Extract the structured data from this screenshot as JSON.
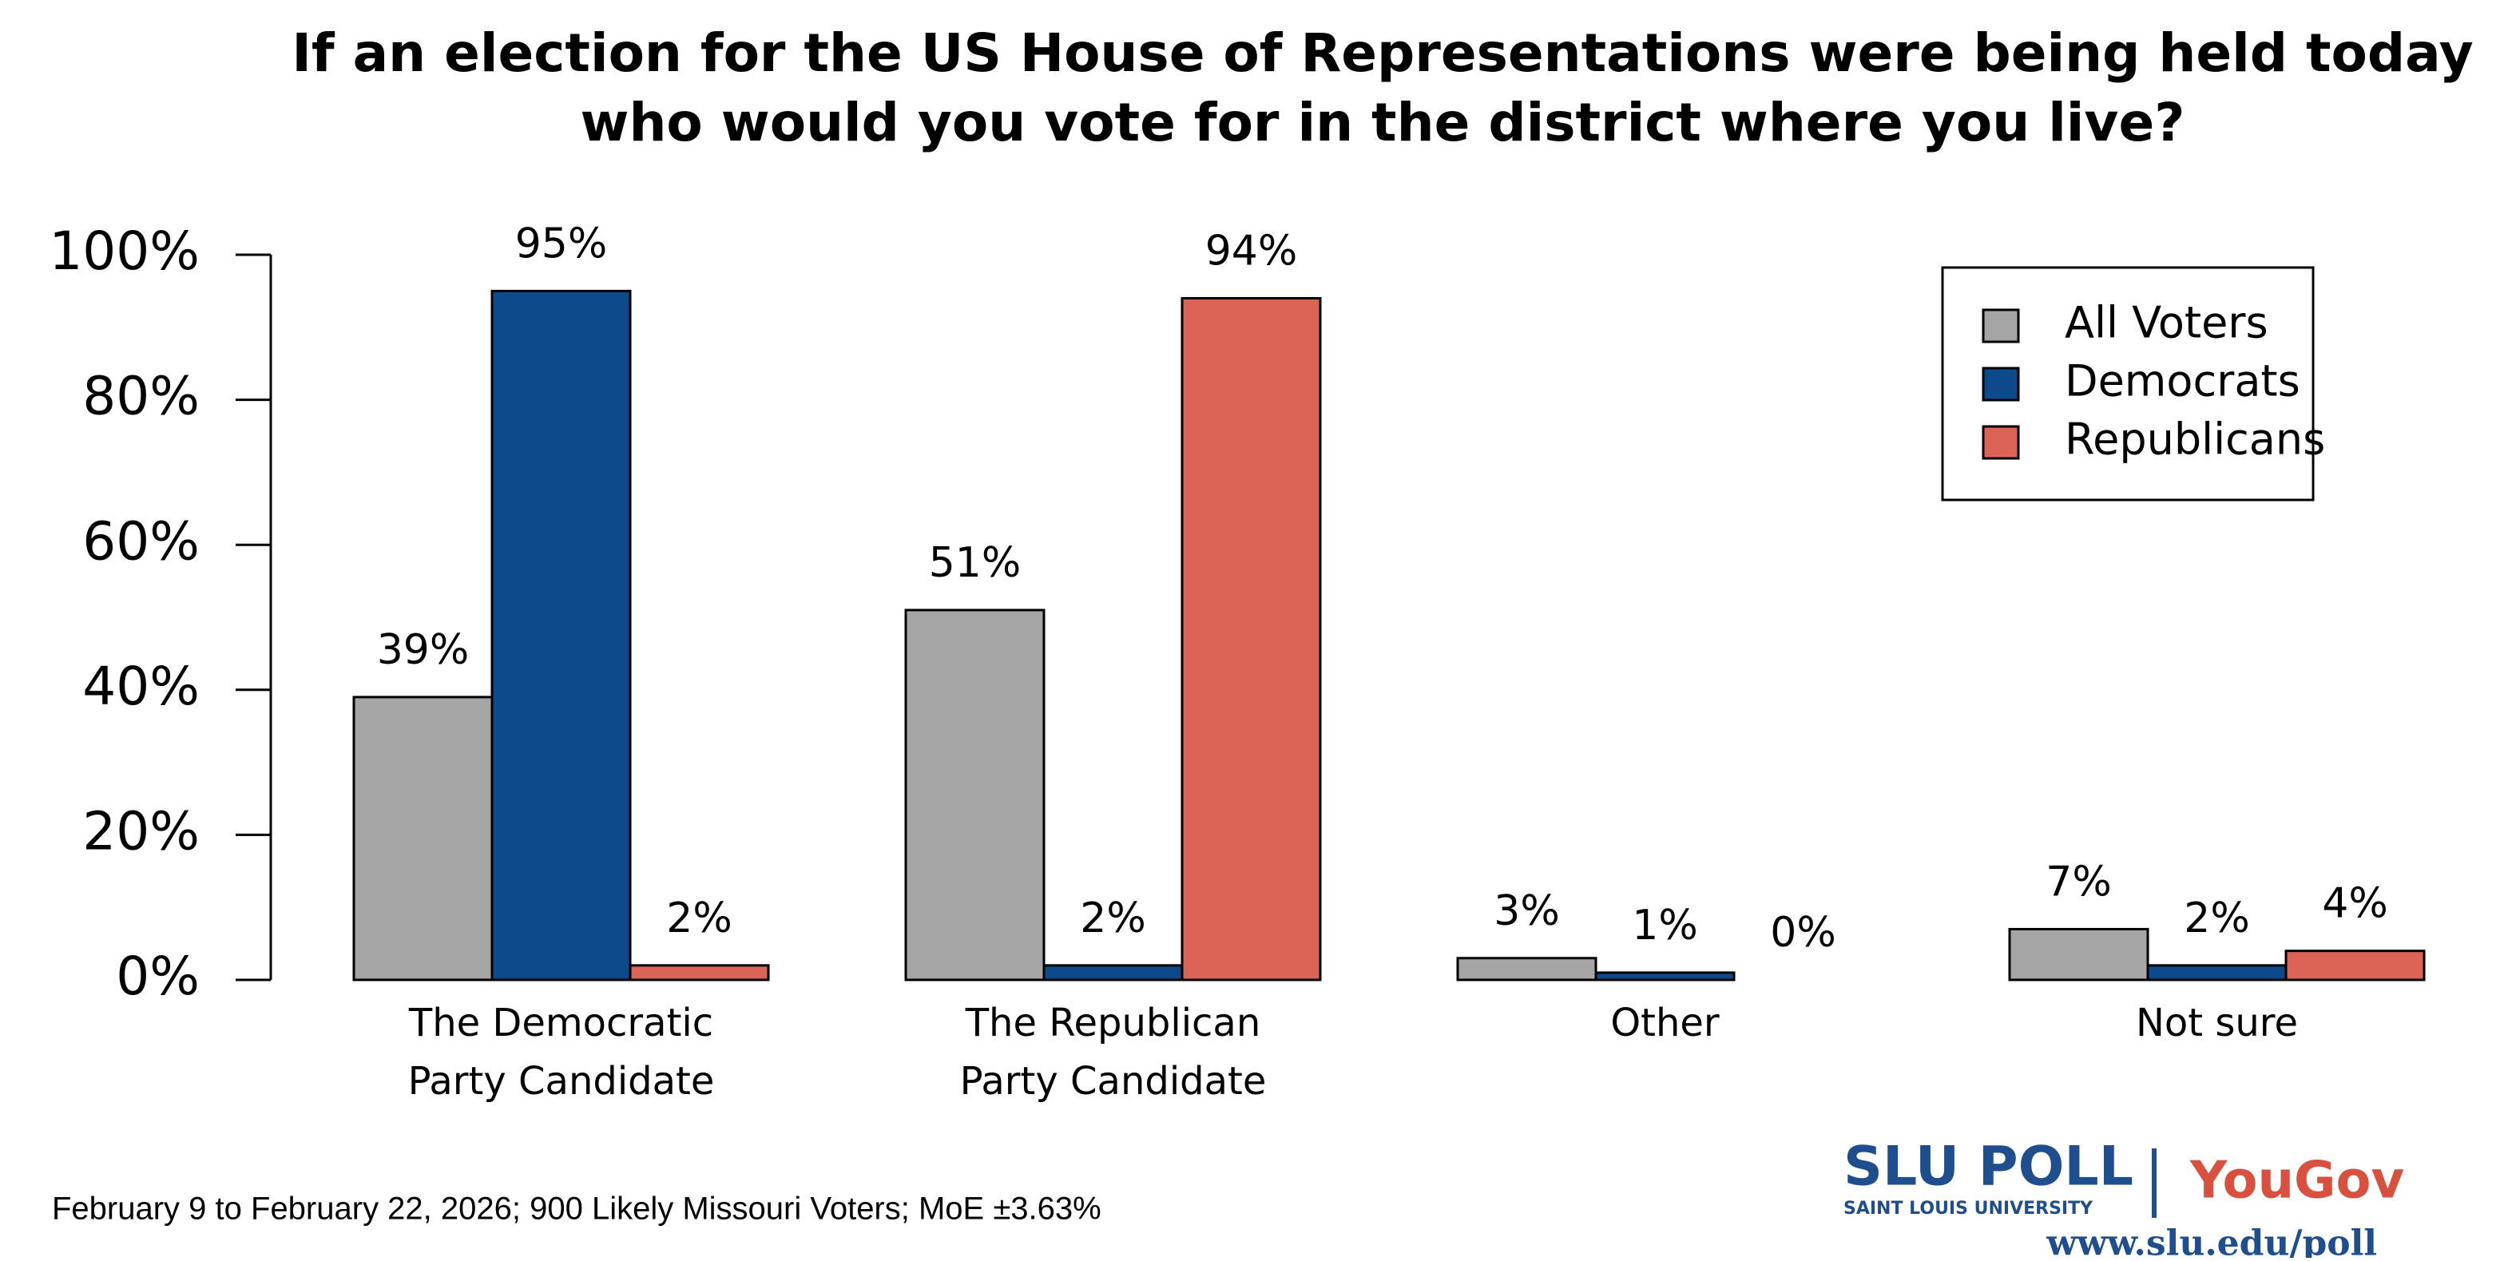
{
  "chart_data": {
    "type": "bar",
    "title": [
      "If an election for the US House of Representations were being held today",
      "who would you vote for in the district where you live?"
    ],
    "categories": [
      [
        "The Democratic",
        "Party Candidate"
      ],
      [
        "The Republican",
        "Party Candidate"
      ],
      [
        "Other"
      ],
      [
        "Not sure"
      ]
    ],
    "series": [
      {
        "name": "All Voters",
        "color": "#a5a5a5",
        "values": [
          39,
          51,
          3,
          7
        ],
        "value_labels": [
          "39%",
          "51%",
          "3%",
          "7%"
        ]
      },
      {
        "name": "Democrats",
        "color": "#0d4a8c",
        "values": [
          95,
          2,
          1,
          2
        ],
        "value_labels": [
          "95%",
          "2%",
          "1%",
          "2%"
        ]
      },
      {
        "name": "Republicans",
        "color": "#dc6457",
        "values": [
          2,
          94,
          0,
          4
        ],
        "value_labels": [
          "2%",
          "94%",
          "0%",
          "4%"
        ]
      }
    ],
    "ylim": [
      0,
      100
    ],
    "yticks": [
      {
        "value": 0,
        "label": "0%"
      },
      {
        "value": 20,
        "label": "20%"
      },
      {
        "value": 40,
        "label": "40%"
      },
      {
        "value": 60,
        "label": "60%"
      },
      {
        "value": 80,
        "label": "80%"
      },
      {
        "value": 100,
        "label": "100%"
      }
    ],
    "legend": "top-right",
    "note": "February 9 to February 22, 2026; 900 Likely Missouri Voters; MoE ±3.63%",
    "logo": {
      "slu": "SLU POLL",
      "slu_sub": "SAINT LOUIS UNIVERSITY",
      "yougov": "YouGov",
      "url": "www.slu.edu/poll"
    }
  }
}
